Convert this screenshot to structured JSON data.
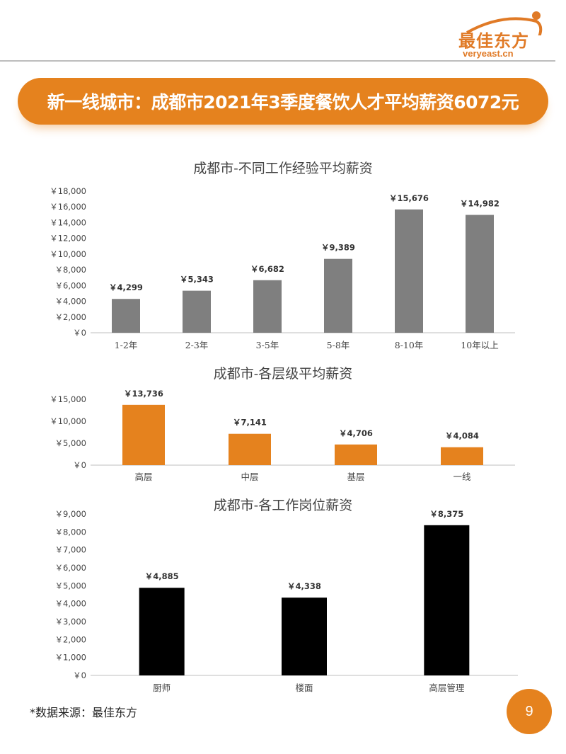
{
  "logo": {
    "cn": "最佳东方",
    "en": "veryeast.cn"
  },
  "banner": {
    "title": "新一线城市：成都市2021年3季度餐饮人才平均薪资6072元"
  },
  "colors": {
    "accent": "#E5821E",
    "gray_bar": "#7F7F7F",
    "orange_bar": "#E5821E",
    "black_bar": "#000000"
  },
  "chart_data": [
    {
      "type": "bar",
      "title": "成都市-不同工作经验平均薪资",
      "categories": [
        "1-2年",
        "2-3年",
        "3-5年",
        "5-8年",
        "8-10年",
        "10年以上"
      ],
      "values": [
        4299,
        5343,
        6682,
        9389,
        15676,
        14982
      ],
      "data_labels": [
        "￥4,299",
        "￥5,343",
        "￥6,682",
        "￥9,389",
        "￥15,676",
        "￥14,982"
      ],
      "yticks": [
        "￥0",
        "￥2,000",
        "￥4,000",
        "￥6,000",
        "￥8,000",
        "￥10,000",
        "￥12,000",
        "￥14,000",
        "￥16,000",
        "￥18,000"
      ],
      "ylim": [
        0,
        18000
      ],
      "color": "#7F7F7F"
    },
    {
      "type": "bar",
      "title": "成都市-各层级平均薪资",
      "categories": [
        "高层",
        "中层",
        "基层",
        "一线"
      ],
      "values": [
        13736,
        7141,
        4706,
        4084
      ],
      "data_labels": [
        "￥13,736",
        "￥7,141",
        "￥4,706",
        "￥4,084"
      ],
      "yticks": [
        "￥0",
        "￥5,000",
        "￥10,000",
        "￥15,000"
      ],
      "ylim": [
        0,
        15000
      ],
      "color": "#E5821E"
    },
    {
      "type": "bar",
      "title": "成都市-各工作岗位薪资",
      "categories": [
        "厨师",
        "楼面",
        "高层管理"
      ],
      "values": [
        4885,
        4338,
        8375
      ],
      "data_labels": [
        "￥4,885",
        "￥4,338",
        "￥8,375"
      ],
      "yticks": [
        "￥0",
        "￥1,000",
        "￥2,000",
        "￥3,000",
        "￥4,000",
        "￥5,000",
        "￥6,000",
        "￥7,000",
        "￥8,000",
        "￥9,000"
      ],
      "ylim": [
        0,
        9000
      ],
      "color": "#000000"
    }
  ],
  "footer": {
    "source": "*数据来源：最佳东方",
    "page": "9"
  }
}
